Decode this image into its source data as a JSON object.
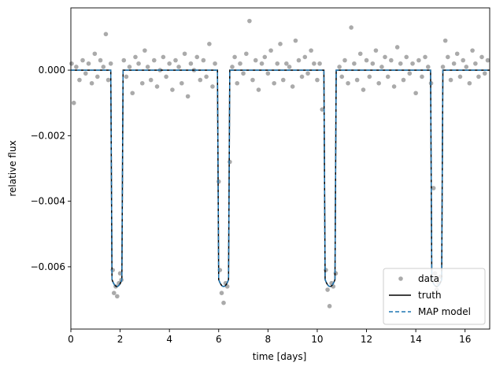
{
  "chart_data": {
    "type": "line",
    "title": "",
    "xlabel": "time [days]",
    "ylabel": "relative flux",
    "xlim": [
      0,
      17
    ],
    "ylim": [
      -0.0079,
      0.0019
    ],
    "grid": false,
    "legend_position": "bottom-right",
    "x_ticks": [
      0,
      2,
      4,
      6,
      8,
      10,
      12,
      14,
      16
    ],
    "x_tick_labels": [
      "0",
      "2",
      "4",
      "6",
      "8",
      "10",
      "12",
      "14",
      "16"
    ],
    "y_ticks": [
      0.0,
      -0.002,
      -0.004,
      -0.006
    ],
    "y_tick_labels": [
      "0.000",
      "−0.002",
      "−0.004",
      "−0.006"
    ],
    "transits": [
      {
        "center": 1.87,
        "depth": -0.0066
      },
      {
        "center": 6.2,
        "depth": -0.0066
      },
      {
        "center": 10.52,
        "depth": -0.0066
      },
      {
        "center": 14.85,
        "depth": -0.0066
      }
    ],
    "transit_width_days": 0.5,
    "series": [
      {
        "name": "data",
        "style": "points",
        "color": "#aaaaaa"
      },
      {
        "name": "truth",
        "style": "solid",
        "color": "#000000"
      },
      {
        "name": "MAP model",
        "style": "dashed",
        "color": "#1f77b4"
      }
    ],
    "data_points": [
      [
        0.03,
        0.0002
      ],
      [
        0.12,
        -0.001
      ],
      [
        0.22,
        0.0001
      ],
      [
        0.35,
        -0.0003
      ],
      [
        0.48,
        0.0003
      ],
      [
        0.6,
        -0.0001
      ],
      [
        0.72,
        0.0002
      ],
      [
        0.85,
        -0.0004
      ],
      [
        0.97,
        0.0005
      ],
      [
        1.08,
        -0.0002
      ],
      [
        1.2,
        0.0003
      ],
      [
        1.32,
        0.0001
      ],
      [
        1.42,
        0.0011
      ],
      [
        1.52,
        -0.0003
      ],
      [
        1.62,
        0.0002
      ],
      [
        1.7,
        -0.0061
      ],
      [
        1.75,
        -0.0068
      ],
      [
        1.82,
        -0.0066
      ],
      [
        1.88,
        -0.0069
      ],
      [
        1.95,
        -0.0065
      ],
      [
        2.0,
        -0.0062
      ],
      [
        2.05,
        -0.0064
      ],
      [
        2.15,
        0.0003
      ],
      [
        2.25,
        -0.0002
      ],
      [
        2.38,
        0.0001
      ],
      [
        2.5,
        -0.0007
      ],
      [
        2.62,
        0.0004
      ],
      [
        2.75,
        0.0002
      ],
      [
        2.9,
        -0.0004
      ],
      [
        3.0,
        0.0006
      ],
      [
        3.12,
        0.0001
      ],
      [
        3.25,
        -0.0003
      ],
      [
        3.38,
        0.0003
      ],
      [
        3.5,
        -0.0005
      ],
      [
        3.62,
        0.0
      ],
      [
        3.75,
        0.0004
      ],
      [
        3.87,
        -0.0002
      ],
      [
        4.0,
        0.0002
      ],
      [
        4.12,
        -0.0006
      ],
      [
        4.25,
        0.0003
      ],
      [
        4.38,
        0.0001
      ],
      [
        4.5,
        -0.0004
      ],
      [
        4.62,
        0.0005
      ],
      [
        4.75,
        -0.0008
      ],
      [
        4.87,
        0.0002
      ],
      [
        5.0,
        0.0
      ],
      [
        5.12,
        0.0004
      ],
      [
        5.25,
        -0.0003
      ],
      [
        5.38,
        0.0003
      ],
      [
        5.5,
        -0.0002
      ],
      [
        5.62,
        0.0008
      ],
      [
        5.75,
        -0.0005
      ],
      [
        5.85,
        0.0002
      ],
      [
        6.0,
        -0.0034
      ],
      [
        6.05,
        -0.0061
      ],
      [
        6.12,
        -0.0068
      ],
      [
        6.2,
        -0.0071
      ],
      [
        6.28,
        -0.0065
      ],
      [
        6.35,
        -0.0066
      ],
      [
        6.45,
        -0.0028
      ],
      [
        6.55,
        0.0001
      ],
      [
        6.65,
        0.0004
      ],
      [
        6.75,
        -0.0004
      ],
      [
        6.87,
        0.0002
      ],
      [
        7.0,
        -0.0001
      ],
      [
        7.12,
        0.0005
      ],
      [
        7.25,
        0.0015
      ],
      [
        7.38,
        -0.0003
      ],
      [
        7.5,
        0.0003
      ],
      [
        7.62,
        -0.0006
      ],
      [
        7.75,
        0.0002
      ],
      [
        7.87,
        0.0004
      ],
      [
        8.0,
        -0.0001
      ],
      [
        8.12,
        0.0006
      ],
      [
        8.25,
        -0.0004
      ],
      [
        8.38,
        0.0002
      ],
      [
        8.5,
        0.0008
      ],
      [
        8.62,
        -0.0003
      ],
      [
        8.75,
        0.0002
      ],
      [
        8.87,
        0.0001
      ],
      [
        9.0,
        -0.0005
      ],
      [
        9.12,
        0.0009
      ],
      [
        9.25,
        0.0003
      ],
      [
        9.38,
        -0.0002
      ],
      [
        9.5,
        0.0004
      ],
      [
        9.62,
        -0.0001
      ],
      [
        9.75,
        0.0006
      ],
      [
        9.87,
        0.0002
      ],
      [
        10.0,
        -0.0003
      ],
      [
        10.1,
        0.0002
      ],
      [
        10.2,
        -0.0012
      ],
      [
        10.35,
        -0.0061
      ],
      [
        10.42,
        -0.0067
      ],
      [
        10.5,
        -0.0072
      ],
      [
        10.58,
        -0.0065
      ],
      [
        10.65,
        -0.0066
      ],
      [
        10.75,
        -0.0062
      ],
      [
        10.9,
        0.0001
      ],
      [
        11.0,
        -0.0002
      ],
      [
        11.12,
        0.0003
      ],
      [
        11.25,
        -0.0004
      ],
      [
        11.38,
        0.0013
      ],
      [
        11.5,
        0.0002
      ],
      [
        11.62,
        -0.0003
      ],
      [
        11.75,
        0.0005
      ],
      [
        11.87,
        -0.0006
      ],
      [
        12.0,
        0.0003
      ],
      [
        12.12,
        -0.0002
      ],
      [
        12.25,
        0.0002
      ],
      [
        12.38,
        0.0006
      ],
      [
        12.5,
        -0.0004
      ],
      [
        12.62,
        0.0001
      ],
      [
        12.75,
        0.0004
      ],
      [
        12.87,
        -0.0002
      ],
      [
        13.0,
        0.0003
      ],
      [
        13.12,
        -0.0005
      ],
      [
        13.25,
        0.0007
      ],
      [
        13.38,
        0.0002
      ],
      [
        13.5,
        -0.0003
      ],
      [
        13.62,
        0.0004
      ],
      [
        13.75,
        -0.0001
      ],
      [
        13.87,
        0.0002
      ],
      [
        14.0,
        -0.0007
      ],
      [
        14.12,
        0.0003
      ],
      [
        14.25,
        -0.0002
      ],
      [
        14.38,
        0.0004
      ],
      [
        14.5,
        0.0001
      ],
      [
        14.62,
        -0.0004
      ],
      [
        14.72,
        -0.0036
      ],
      [
        14.78,
        -0.0062
      ],
      [
        14.85,
        -0.0067
      ],
      [
        14.92,
        -0.0065
      ],
      [
        15.0,
        -0.0063
      ],
      [
        15.1,
        0.0001
      ],
      [
        15.2,
        0.0009
      ],
      [
        15.3,
        0.0004
      ],
      [
        15.42,
        -0.0003
      ],
      [
        15.55,
        0.0002
      ],
      [
        15.68,
        0.0005
      ],
      [
        15.8,
        -0.0002
      ],
      [
        15.92,
        0.0003
      ],
      [
        16.05,
        0.0001
      ],
      [
        16.18,
        -0.0004
      ],
      [
        16.3,
        0.0006
      ],
      [
        16.42,
        0.0002
      ],
      [
        16.55,
        -0.0002
      ],
      [
        16.68,
        0.0004
      ],
      [
        16.8,
        -0.0001
      ],
      [
        16.92,
        0.0003
      ]
    ]
  }
}
